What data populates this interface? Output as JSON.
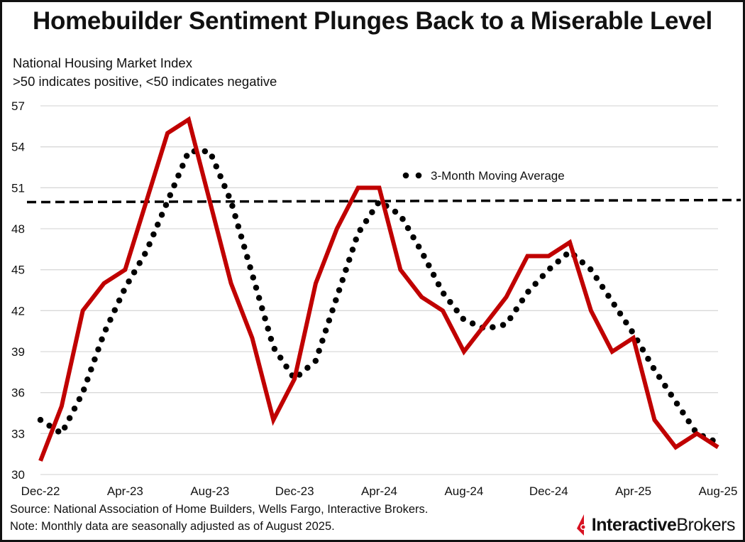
{
  "title": "Homebuilder Sentiment Plunges Back to a Miserable Level",
  "subtitle_1": "National Housing Market Index",
  "subtitle_2": ">50 indicates positive, <50 indicates negative",
  "source": "Source: National Association of Home Builders, Wells Fargo, Interactive Brokers.",
  "note": "Note: Monthly data are seasonally adjusted as of August 2025.",
  "logo_text": {
    "bold": "Interactive",
    "regular": "Brokers"
  },
  "colors": {
    "index_line": "#c00000",
    "moving_average": "#000000",
    "threshold": "#000000",
    "grid": "#d9d9d9"
  },
  "chart_data": {
    "type": "line",
    "x": [
      "Dec-22",
      "Jan-23",
      "Feb-23",
      "Mar-23",
      "Apr-23",
      "May-23",
      "Jun-23",
      "Jul-23",
      "Aug-23",
      "Sep-23",
      "Oct-23",
      "Nov-23",
      "Dec-23",
      "Jan-24",
      "Feb-24",
      "Mar-24",
      "Apr-24",
      "May-24",
      "Jun-24",
      "Jul-24",
      "Aug-24",
      "Sep-24",
      "Oct-24",
      "Nov-24",
      "Dec-24",
      "Jan-25",
      "Feb-25",
      "Mar-25",
      "Apr-25",
      "May-25",
      "Jun-25",
      "Jul-25",
      "Aug-25"
    ],
    "x_tick_labels": [
      "Dec-22",
      "Apr-23",
      "Aug-23",
      "Dec-23",
      "Apr-24",
      "Aug-24",
      "Dec-24",
      "Apr-25",
      "Aug-25"
    ],
    "series": [
      {
        "values": [
          31,
          35,
          42,
          44,
          45,
          50,
          55,
          56,
          50,
          44,
          40,
          34,
          37,
          44,
          48,
          51,
          51,
          45,
          43,
          42,
          39,
          41,
          43,
          46,
          46,
          47,
          42,
          39,
          40,
          34,
          32,
          33,
          32
        ],
        "style": "solid-red"
      },
      {
        "name": "3-Month Moving Average",
        "values": [
          34,
          33,
          36,
          40.33,
          43.67,
          46.33,
          50,
          53.67,
          53.67,
          50,
          44.67,
          39.33,
          37,
          38.33,
          43,
          47.67,
          50,
          49,
          46.33,
          43.33,
          41.33,
          40.67,
          41,
          43.33,
          45,
          46.33,
          45,
          42.67,
          40.33,
          37.67,
          35.33,
          33,
          32.33
        ],
        "style": "dotted-black"
      }
    ],
    "reference_line": {
      "y": 50,
      "style": "dashed"
    },
    "ylim": [
      30,
      57
    ],
    "y_ticks": [
      30,
      33,
      36,
      39,
      42,
      45,
      48,
      51,
      54,
      57
    ],
    "grid": "horizontal",
    "legend_placement": "top-center"
  }
}
